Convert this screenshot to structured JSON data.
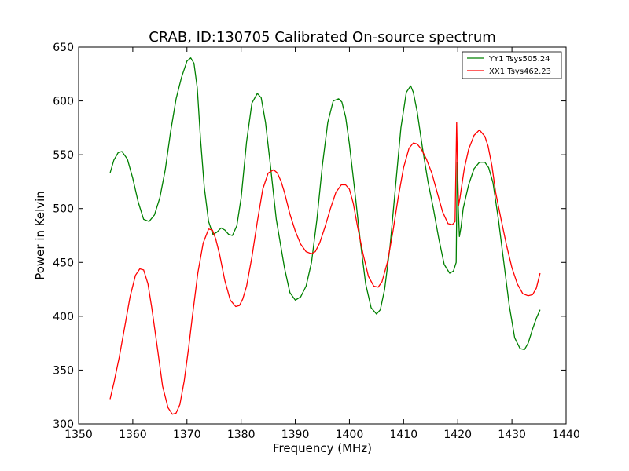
{
  "chart_data": {
    "type": "line",
    "title": "CRAB, ID:130705 Calibrated On-source spectrum",
    "xlabel": "Frequency (MHz)",
    "ylabel": "Power in Kelvin",
    "xlim": [
      1350,
      1440
    ],
    "ylim": [
      300,
      650
    ],
    "xticks": [
      1350,
      1360,
      1370,
      1380,
      1390,
      1400,
      1410,
      1420,
      1430,
      1440
    ],
    "yticks": [
      300,
      350,
      400,
      450,
      500,
      550,
      600,
      650
    ],
    "grid": false,
    "legend_position": "top-right",
    "series": [
      {
        "name": "YY1 Tsys505.24",
        "color": "#008000",
        "x": [
          1355.8,
          1356.5,
          1357.3,
          1358.0,
          1359.0,
          1360.0,
          1361.0,
          1362.0,
          1363.0,
          1364.0,
          1365.0,
          1366.0,
          1367.0,
          1368.0,
          1369.0,
          1370.0,
          1370.7,
          1371.3,
          1371.9,
          1372.5,
          1373.2,
          1374.0,
          1374.8,
          1375.5,
          1376.3,
          1377.0,
          1377.7,
          1378.4,
          1379.2,
          1380.0,
          1381.0,
          1382.0,
          1383.0,
          1383.7,
          1384.5,
          1385.3,
          1386.5,
          1388.0,
          1389.0,
          1390.0,
          1391.0,
          1392.0,
          1393.0,
          1394.0,
          1395.0,
          1396.0,
          1397.0,
          1398.0,
          1398.6,
          1399.3,
          1400.0,
          1401.0,
          1402.0,
          1403.0,
          1404.0,
          1405.0,
          1405.7,
          1406.5,
          1407.5,
          1408.5,
          1409.5,
          1410.5,
          1411.3,
          1411.8,
          1412.5,
          1413.5,
          1414.5,
          1415.5,
          1416.5,
          1417.5,
          1418.5,
          1419.2,
          1419.7,
          1419.9,
          1420.1,
          1420.3,
          1420.6,
          1421.0,
          1422.0,
          1423.0,
          1424.0,
          1425.0,
          1425.7,
          1426.5,
          1427.5,
          1428.5,
          1429.5,
          1430.5,
          1431.5,
          1432.3,
          1433.0,
          1433.8,
          1434.5,
          1435.2
        ],
        "values": [
          533,
          545,
          552,
          553,
          546,
          528,
          506,
          490,
          488,
          494,
          510,
          536,
          572,
          602,
          622,
          637,
          640,
          635,
          612,
          565,
          520,
          488,
          476,
          478,
          482,
          480,
          476,
          475,
          484,
          510,
          562,
          598,
          607,
          603,
          580,
          545,
          490,
          445,
          422,
          415,
          418,
          428,
          450,
          490,
          540,
          580,
          600,
          602,
          599,
          585,
          560,
          516,
          470,
          430,
          408,
          402,
          406,
          425,
          465,
          520,
          575,
          608,
          614,
          608,
          590,
          556,
          525,
          500,
          472,
          448,
          440,
          442,
          450,
          543,
          500,
          474,
          483,
          500,
          522,
          537,
          543,
          543,
          538,
          524,
          490,
          450,
          410,
          380,
          370,
          369,
          375,
          388,
          398,
          406
        ]
      },
      {
        "name": "XX1 Tsys462.23",
        "color": "#ff0000",
        "x": [
          1355.8,
          1356.5,
          1357.5,
          1358.5,
          1359.5,
          1360.5,
          1361.3,
          1362.0,
          1362.8,
          1363.5,
          1364.5,
          1365.5,
          1366.5,
          1367.3,
          1368.0,
          1368.7,
          1369.5,
          1370.3,
          1371.0,
          1372.0,
          1373.0,
          1374.0,
          1374.7,
          1375.3,
          1376.0,
          1377.0,
          1378.0,
          1379.0,
          1379.7,
          1380.3,
          1381.0,
          1382.0,
          1383.0,
          1384.0,
          1385.0,
          1386.0,
          1386.7,
          1387.4,
          1388.0,
          1389.0,
          1390.0,
          1391.0,
          1392.0,
          1393.0,
          1393.7,
          1394.5,
          1395.5,
          1396.5,
          1397.5,
          1398.5,
          1399.3,
          1400.0,
          1400.7,
          1401.5,
          1402.5,
          1403.5,
          1404.5,
          1405.3,
          1406.0,
          1407.0,
          1408.0,
          1409.0,
          1410.0,
          1411.0,
          1411.8,
          1412.5,
          1413.3,
          1414.2,
          1415.2,
          1416.2,
          1417.2,
          1418.2,
          1419.0,
          1419.5,
          1419.8,
          1420.0,
          1420.15,
          1420.4,
          1420.7,
          1421.2,
          1422.0,
          1423.0,
          1424.0,
          1425.0,
          1425.6,
          1426.3,
          1427.0,
          1428.0,
          1429.0,
          1430.0,
          1431.0,
          1432.0,
          1433.0,
          1433.8,
          1434.5,
          1435.2
        ],
        "values": [
          323,
          338,
          362,
          390,
          418,
          438,
          444,
          443,
          430,
          408,
          372,
          335,
          315,
          309,
          310,
          318,
          340,
          370,
          400,
          440,
          468,
          481,
          480,
          472,
          458,
          433,
          415,
          409,
          410,
          416,
          428,
          455,
          488,
          518,
          533,
          536,
          533,
          525,
          515,
          495,
          479,
          467,
          460,
          458,
          460,
          468,
          483,
          500,
          515,
          522,
          522,
          518,
          505,
          483,
          458,
          437,
          428,
          427,
          432,
          450,
          478,
          510,
          538,
          556,
          561,
          560,
          555,
          546,
          533,
          515,
          497,
          486,
          485,
          488,
          580,
          530,
          503,
          510,
          520,
          537,
          555,
          568,
          573,
          567,
          558,
          540,
          515,
          490,
          466,
          445,
          430,
          421,
          419,
          420,
          426,
          440
        ]
      }
    ]
  }
}
